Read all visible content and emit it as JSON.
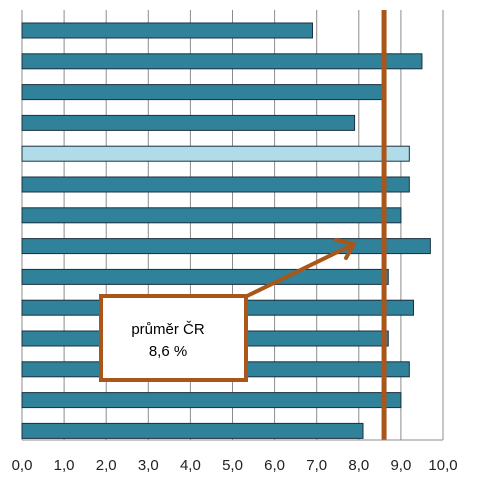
{
  "chart_data": {
    "type": "bar",
    "orientation": "horizontal",
    "title": "",
    "xlabel": "",
    "ylabel": "",
    "xlim": [
      0,
      10
    ],
    "x_ticks": [
      "0,0",
      "1,0",
      "2,0",
      "3,0",
      "4,0",
      "5,0",
      "6,0",
      "7,0",
      "8,0",
      "9,0",
      "10,0"
    ],
    "grid": "vertical",
    "legend": "none",
    "categories": [
      "",
      "",
      "",
      "",
      "",
      "",
      "",
      "",
      "",
      "",
      "",
      "",
      "",
      ""
    ],
    "values": [
      6.9,
      9.5,
      8.6,
      7.9,
      9.2,
      9.2,
      9.0,
      9.7,
      8.7,
      9.3,
      8.7,
      9.2,
      9.0,
      8.1
    ],
    "highlight_index": 4,
    "reference_line": {
      "value": 8.6
    },
    "annotation": {
      "line1": "průměr ČR",
      "line2": "8,6 %"
    },
    "colors": {
      "bar": "#2f8299",
      "bar_highlight": "#b0dce9",
      "bar_edge": "#1b3040",
      "reference": "#a9561b",
      "grid": "#8c8c8c"
    }
  }
}
